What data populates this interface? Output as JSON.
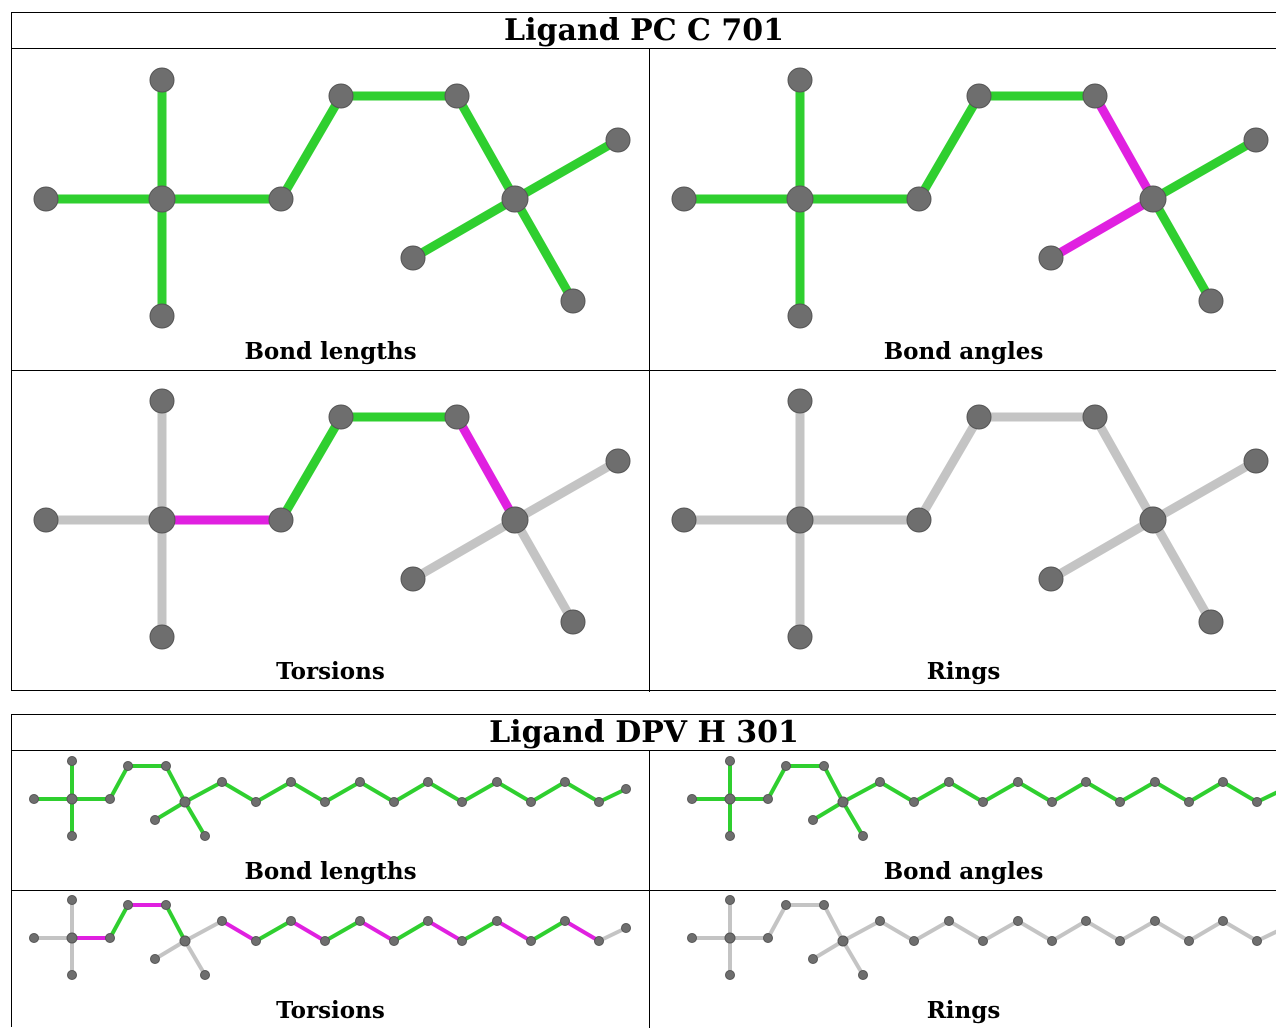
{
  "ligands": [
    {
      "title": "Ligand PC C 701",
      "panels": [
        {
          "caption": "Bond lengths",
          "bond_colors": [
            "green",
            "green",
            "green",
            "green",
            "green",
            "green",
            "green",
            "green",
            "green",
            "green"
          ]
        },
        {
          "caption": "Bond angles",
          "bond_colors": [
            "green",
            "green",
            "green",
            "green",
            "green",
            "green",
            "magenta",
            "green",
            "magenta",
            "green"
          ]
        },
        {
          "caption": "Torsions",
          "bond_colors": [
            "gray",
            "gray",
            "gray",
            "magenta",
            "green",
            "green",
            "magenta",
            "gray",
            "gray",
            "gray"
          ]
        },
        {
          "caption": "Rings",
          "bond_colors": [
            "gray",
            "gray",
            "gray",
            "gray",
            "gray",
            "gray",
            "gray",
            "gray",
            "gray",
            "gray"
          ]
        }
      ]
    },
    {
      "title": "Ligand DPV H 301",
      "panels": [
        {
          "caption": "Bond lengths",
          "bond_colors": [
            "green",
            "green",
            "green",
            "green",
            "green",
            "green",
            "green",
            "green",
            "green",
            "green",
            "green",
            "green",
            "green",
            "green",
            "green",
            "green",
            "green",
            "green",
            "green",
            "green",
            "green",
            "green"
          ]
        },
        {
          "caption": "Bond angles",
          "bond_colors": [
            "green",
            "green",
            "green",
            "green",
            "green",
            "green",
            "green",
            "green",
            "green",
            "green",
            "green",
            "green",
            "green",
            "green",
            "green",
            "green",
            "green",
            "green",
            "green",
            "green",
            "green",
            "green"
          ]
        },
        {
          "caption": "Torsions",
          "bond_colors": [
            "gray",
            "gray",
            "gray",
            "magenta",
            "green",
            "magenta",
            "green",
            "gray",
            "gray",
            "gray",
            "magenta",
            "green",
            "magenta",
            "green",
            "magenta",
            "green",
            "magenta",
            "green",
            "magenta",
            "green",
            "magenta",
            "gray"
          ]
        },
        {
          "caption": "Rings",
          "bond_colors": [
            "gray",
            "gray",
            "gray",
            "gray",
            "gray",
            "gray",
            "gray",
            "gray",
            "gray",
            "gray",
            "gray",
            "gray",
            "gray",
            "gray",
            "gray",
            "gray",
            "gray",
            "gray",
            "gray",
            "gray",
            "gray",
            "gray"
          ]
        }
      ]
    }
  ],
  "colors": {
    "green": "#2fcf2f",
    "magenta": "#e020e0",
    "gray": "#c4c4c4",
    "atom": "#6e6e6e"
  }
}
